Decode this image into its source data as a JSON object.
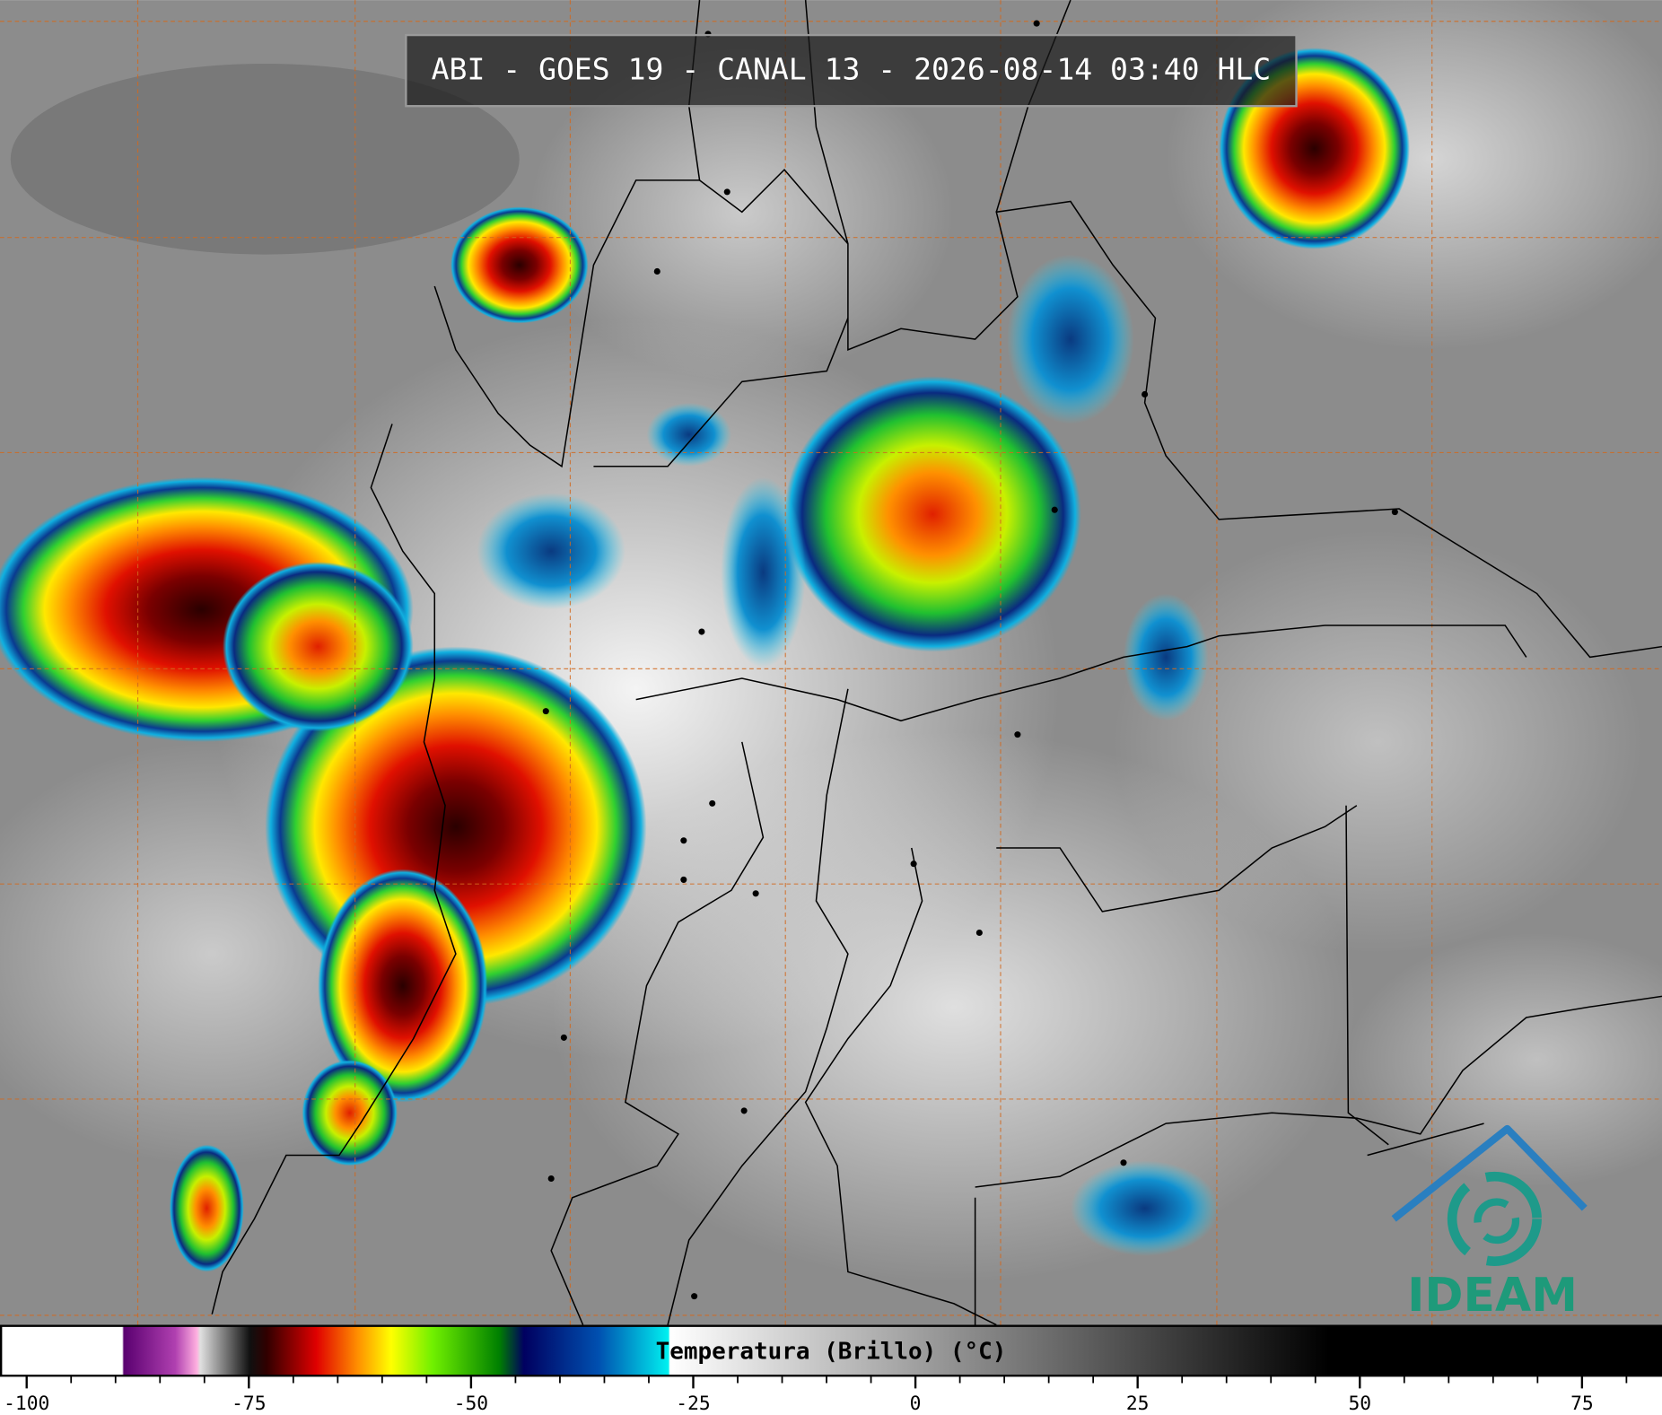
{
  "header": {
    "title": "ABI - GOES 19 - CANAL 13 - 2026-08-14 03:40 HLC"
  },
  "colorbar": {
    "label": "Temperatura (Brillo) (°C)",
    "lim": [
      -103,
      84
    ],
    "ticks": [
      -100,
      -75,
      -50,
      -25,
      0,
      25,
      50,
      75
    ],
    "minor_step": 5
  },
  "logo": {
    "text": "IDEAM"
  }
}
